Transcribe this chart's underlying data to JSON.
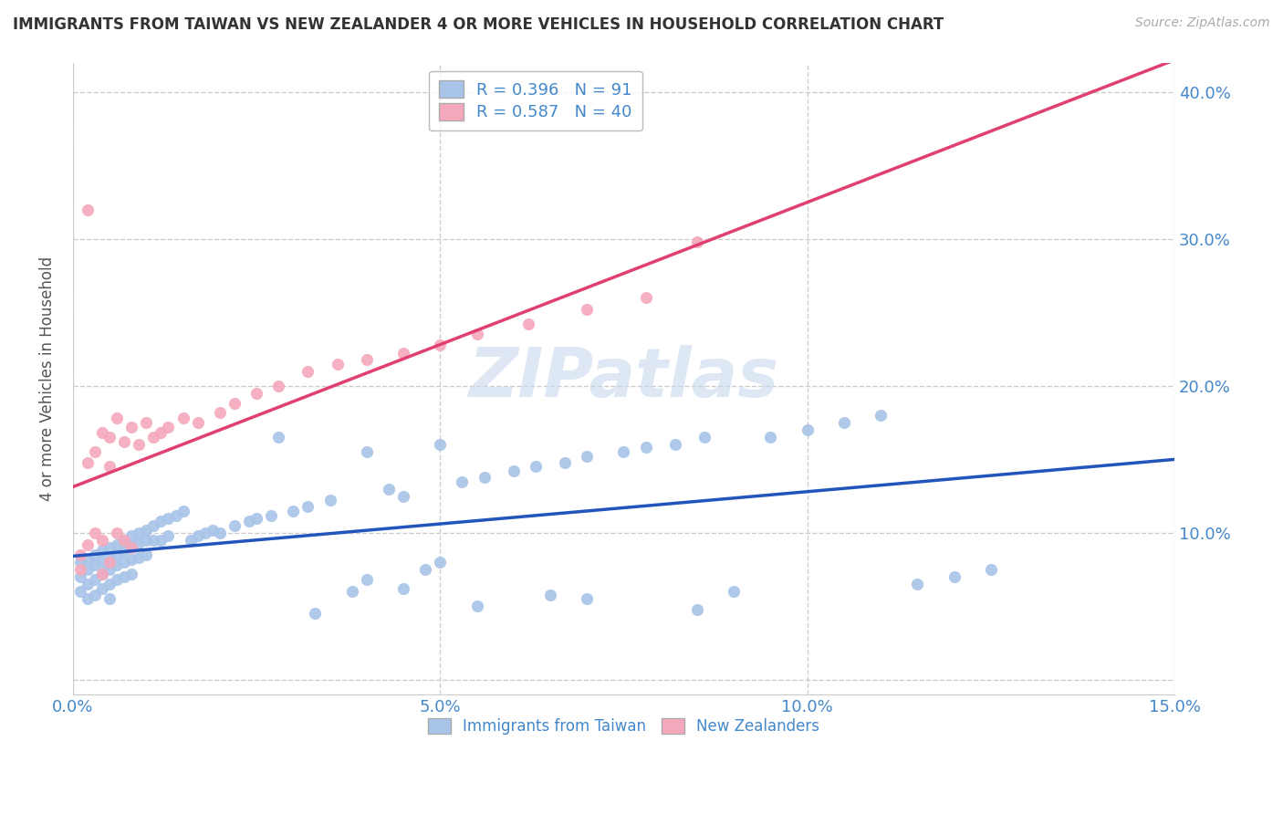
{
  "title": "IMMIGRANTS FROM TAIWAN VS NEW ZEALANDER 4 OR MORE VEHICLES IN HOUSEHOLD CORRELATION CHART",
  "source": "Source: ZipAtlas.com",
  "ylabel": "4 or more Vehicles in Household",
  "x_min": 0.0,
  "x_max": 0.15,
  "y_min": -0.01,
  "y_max": 0.42,
  "x_ticks": [
    0.0,
    0.05,
    0.1,
    0.15
  ],
  "x_tick_labels": [
    "0.0%",
    "5.0%",
    "10.0%",
    "15.0%"
  ],
  "y_ticks": [
    0.0,
    0.1,
    0.2,
    0.3,
    0.4
  ],
  "y_tick_labels_right": [
    "",
    "10.0%",
    "20.0%",
    "30.0%",
    "40.0%"
  ],
  "blue_R": 0.396,
  "blue_N": 91,
  "pink_R": 0.587,
  "pink_N": 40,
  "blue_color": "#a8c4e8",
  "pink_color": "#f4a8bc",
  "blue_line_color": "#2255bb",
  "pink_line_color": "#e04070",
  "legend_blue_label": "Immigrants from Taiwan",
  "legend_pink_label": "New Zealanders",
  "watermark": "ZIPatlas",
  "background_color": "#ffffff",
  "grid_color": "#cccccc",
  "title_color": "#333333",
  "axis_label_color": "#555555",
  "tick_label_color": "#4488cc",
  "blue_scatter_x": [
    0.001,
    0.001,
    0.001,
    0.002,
    0.002,
    0.002,
    0.002,
    0.003,
    0.003,
    0.003,
    0.003,
    0.004,
    0.004,
    0.004,
    0.004,
    0.005,
    0.005,
    0.005,
    0.005,
    0.005,
    0.006,
    0.006,
    0.006,
    0.006,
    0.007,
    0.007,
    0.007,
    0.007,
    0.008,
    0.008,
    0.008,
    0.008,
    0.009,
    0.009,
    0.009,
    0.01,
    0.01,
    0.01,
    0.011,
    0.011,
    0.012,
    0.012,
    0.013,
    0.013,
    0.014,
    0.015,
    0.016,
    0.017,
    0.018,
    0.019,
    0.02,
    0.022,
    0.024,
    0.025,
    0.027,
    0.03,
    0.032,
    0.035,
    0.038,
    0.04,
    0.043,
    0.045,
    0.048,
    0.05,
    0.053,
    0.056,
    0.06,
    0.063,
    0.067,
    0.07,
    0.075,
    0.078,
    0.082,
    0.086,
    0.09,
    0.095,
    0.1,
    0.105,
    0.11,
    0.115,
    0.12,
    0.125,
    0.04,
    0.05,
    0.028,
    0.033,
    0.045,
    0.055,
    0.065,
    0.07,
    0.085
  ],
  "blue_scatter_y": [
    0.08,
    0.07,
    0.06,
    0.082,
    0.075,
    0.065,
    0.055,
    0.085,
    0.078,
    0.068,
    0.058,
    0.088,
    0.08,
    0.072,
    0.062,
    0.09,
    0.083,
    0.075,
    0.065,
    0.055,
    0.092,
    0.085,
    0.078,
    0.068,
    0.095,
    0.088,
    0.08,
    0.07,
    0.098,
    0.092,
    0.082,
    0.072,
    0.1,
    0.093,
    0.083,
    0.102,
    0.095,
    0.085,
    0.105,
    0.095,
    0.108,
    0.095,
    0.11,
    0.098,
    0.112,
    0.115,
    0.095,
    0.098,
    0.1,
    0.102,
    0.1,
    0.105,
    0.108,
    0.11,
    0.112,
    0.115,
    0.118,
    0.122,
    0.06,
    0.068,
    0.13,
    0.125,
    0.075,
    0.08,
    0.135,
    0.138,
    0.142,
    0.145,
    0.148,
    0.152,
    0.155,
    0.158,
    0.16,
    0.165,
    0.06,
    0.165,
    0.17,
    0.175,
    0.18,
    0.065,
    0.07,
    0.075,
    0.155,
    0.16,
    0.165,
    0.045,
    0.062,
    0.05,
    0.058,
    0.055,
    0.048
  ],
  "pink_scatter_x": [
    0.001,
    0.001,
    0.002,
    0.002,
    0.003,
    0.003,
    0.004,
    0.004,
    0.005,
    0.005,
    0.005,
    0.006,
    0.006,
    0.007,
    0.007,
    0.008,
    0.008,
    0.009,
    0.01,
    0.011,
    0.012,
    0.013,
    0.015,
    0.017,
    0.02,
    0.022,
    0.025,
    0.028,
    0.032,
    0.036,
    0.04,
    0.045,
    0.05,
    0.055,
    0.062,
    0.07,
    0.078,
    0.085,
    0.002,
    0.004
  ],
  "pink_scatter_y": [
    0.085,
    0.075,
    0.148,
    0.092,
    0.1,
    0.155,
    0.095,
    0.168,
    0.08,
    0.145,
    0.165,
    0.1,
    0.178,
    0.095,
    0.162,
    0.09,
    0.172,
    0.16,
    0.175,
    0.165,
    0.168,
    0.172,
    0.178,
    0.175,
    0.182,
    0.188,
    0.195,
    0.2,
    0.21,
    0.215,
    0.218,
    0.222,
    0.228,
    0.235,
    0.242,
    0.252,
    0.26,
    0.298,
    0.32,
    0.072
  ]
}
